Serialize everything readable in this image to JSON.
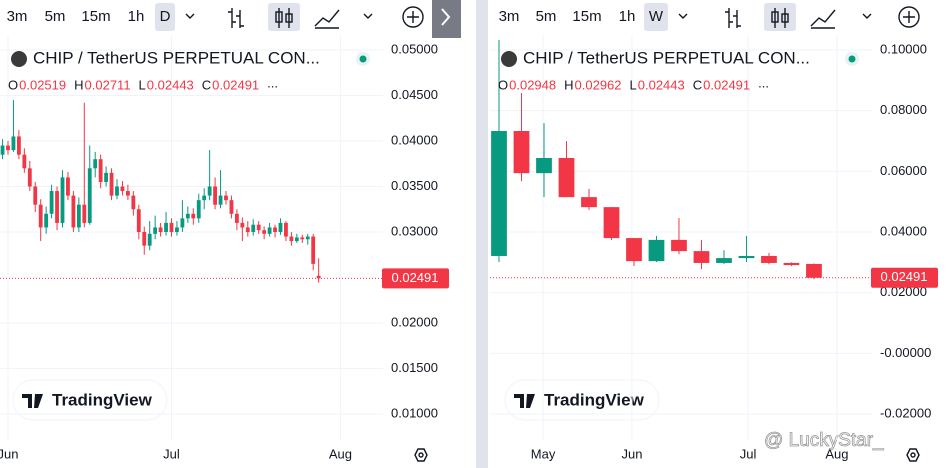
{
  "toolbars": [
    {
      "intervals": [
        "3m",
        "5m",
        "15m",
        "1h",
        "D"
      ]
    },
    {
      "intervals": [
        "3m",
        "5m",
        "15m",
        "1h",
        "W"
      ]
    }
  ],
  "watermark": "TradingView",
  "credit": "@ LuckyStar_",
  "chart_data": [
    {
      "type": "candlestick",
      "symbol": "CHIP / TetherUS PERPETUAL CON...",
      "ohlc_labels": [
        "O",
        "H",
        "L",
        "C"
      ],
      "more": "...",
      "up_color": "#089981",
      "down_color": "#f23645",
      "ylim": [
        0.007143,
        0.051648
      ],
      "yticks": [
        {
          "value": 0.05,
          "label": "0.05000"
        },
        {
          "value": 0.045,
          "label": "0.04500"
        },
        {
          "value": 0.04,
          "label": "0.04000"
        },
        {
          "value": 0.035,
          "label": "0.03500"
        },
        {
          "value": 0.03,
          "label": "0.03000"
        },
        {
          "value": 0.02,
          "label": "0.02000"
        },
        {
          "value": 0.015,
          "label": "0.01500"
        },
        {
          "value": 0.01,
          "label": "0.01000"
        }
      ],
      "xlim": [
        -0.468,
        69.81
      ],
      "xticks": [
        {
          "value": 1,
          "label": "Jun"
        },
        {
          "value": 31,
          "label": "Jul"
        },
        {
          "value": 62,
          "label": "Aug"
        }
      ],
      "ohlc": [
        [
          0.0385,
          0.0402,
          0.038,
          0.0395
        ],
        [
          0.0395,
          0.04,
          0.0385,
          0.039
        ],
        [
          0.039,
          0.0445,
          0.0388,
          0.0405
        ],
        [
          0.0405,
          0.0412,
          0.038,
          0.0385
        ],
        [
          0.0385,
          0.0392,
          0.0365,
          0.037
        ],
        [
          0.037,
          0.0378,
          0.0345,
          0.035
        ],
        [
          0.035,
          0.0355,
          0.0322,
          0.033
        ],
        [
          0.033,
          0.0336,
          0.029,
          0.0305
        ],
        [
          0.0305,
          0.0328,
          0.0298,
          0.032
        ],
        [
          0.032,
          0.0352,
          0.0315,
          0.0345
        ],
        [
          0.0345,
          0.035,
          0.0302,
          0.031
        ],
        [
          0.031,
          0.0368,
          0.0305,
          0.036
        ],
        [
          0.036,
          0.0366,
          0.0335,
          0.034
        ],
        [
          0.034,
          0.0345,
          0.03,
          0.0305
        ],
        [
          0.0305,
          0.0338,
          0.03,
          0.033
        ],
        [
          0.033,
          0.0442,
          0.0305,
          0.031
        ],
        [
          0.031,
          0.0395,
          0.0308,
          0.037
        ],
        [
          0.037,
          0.0388,
          0.036,
          0.038
        ],
        [
          0.038,
          0.0385,
          0.0348,
          0.0355
        ],
        [
          0.0355,
          0.0372,
          0.035,
          0.0365
        ],
        [
          0.0365,
          0.037,
          0.0335,
          0.034
        ],
        [
          0.034,
          0.0358,
          0.0336,
          0.035
        ],
        [
          0.035,
          0.0356,
          0.034,
          0.0345
        ],
        [
          0.0345,
          0.0352,
          0.0335,
          0.034
        ],
        [
          0.034,
          0.0345,
          0.0318,
          0.0325
        ],
        [
          0.0325,
          0.033,
          0.0292,
          0.03
        ],
        [
          0.03,
          0.0306,
          0.0275,
          0.0285
        ],
        [
          0.0285,
          0.0312,
          0.028,
          0.0298
        ],
        [
          0.0298,
          0.0318,
          0.0292,
          0.0305
        ],
        [
          0.0305,
          0.031,
          0.0295,
          0.03
        ],
        [
          0.03,
          0.0322,
          0.0296,
          0.031
        ],
        [
          0.031,
          0.0315,
          0.0295,
          0.03
        ],
        [
          0.03,
          0.0312,
          0.0296,
          0.0305
        ],
        [
          0.0305,
          0.0335,
          0.03,
          0.0315
        ],
        [
          0.0315,
          0.0328,
          0.031,
          0.032
        ],
        [
          0.032,
          0.0326,
          0.0308,
          0.0315
        ],
        [
          0.0315,
          0.0342,
          0.031,
          0.0335
        ],
        [
          0.0335,
          0.0348,
          0.0325,
          0.034
        ],
        [
          0.034,
          0.039,
          0.0335,
          0.035
        ],
        [
          0.035,
          0.036,
          0.0325,
          0.033
        ],
        [
          0.033,
          0.0368,
          0.0326,
          0.034
        ],
        [
          0.034,
          0.0345,
          0.033,
          0.0335
        ],
        [
          0.0335,
          0.034,
          0.0315,
          0.032
        ],
        [
          0.032,
          0.0325,
          0.0302,
          0.031
        ],
        [
          0.031,
          0.0316,
          0.029,
          0.0305
        ],
        [
          0.0305,
          0.0312,
          0.0295,
          0.03
        ],
        [
          0.03,
          0.0314,
          0.0296,
          0.0308
        ],
        [
          0.0308,
          0.0312,
          0.0298,
          0.0302
        ],
        [
          0.0302,
          0.0306,
          0.0292,
          0.0298
        ],
        [
          0.0298,
          0.031,
          0.0295,
          0.0305
        ],
        [
          0.0305,
          0.0308,
          0.0294,
          0.03
        ],
        [
          0.03,
          0.0315,
          0.0297,
          0.031
        ],
        [
          0.031,
          0.0312,
          0.029,
          0.0295
        ],
        [
          0.0295,
          0.03,
          0.0285,
          0.029
        ],
        [
          0.029,
          0.0298,
          0.0288,
          0.0294
        ],
        [
          0.0294,
          0.0297,
          0.0288,
          0.0292
        ],
        [
          0.0292,
          0.0298,
          0.0286,
          0.0295
        ],
        [
          0.0295,
          0.0298,
          0.0258,
          0.0265
        ],
        [
          0.02519,
          0.02711,
          0.02443,
          0.02491
        ]
      ]
    },
    {
      "type": "candlestick",
      "symbol": "CHIP / TetherUS PERPETUAL CON...",
      "ohlc_labels": [
        "O",
        "H",
        "L",
        "C"
      ],
      "more": "...",
      "up_color": "#089981",
      "down_color": "#f23645",
      "ylim": [
        -0.02857,
        0.10495
      ],
      "yticks": [
        {
          "value": 0.1,
          "label": "0.10000"
        },
        {
          "value": 0.08,
          "label": "0.08000"
        },
        {
          "value": 0.06,
          "label": "0.06000"
        },
        {
          "value": 0.04,
          "label": "0.04000"
        },
        {
          "value": 0.02,
          "label": "0.02000"
        },
        {
          "value": 0,
          "label": "-0.00000"
        },
        {
          "value": -0.02,
          "label": "-0.02000"
        }
      ],
      "xlim": [
        -0.4,
        16.58
      ],
      "xticks": [
        {
          "value": 1.96,
          "label": "May"
        },
        {
          "value": 5.91,
          "label": "Jun"
        },
        {
          "value": 11.07,
          "label": "Jul"
        },
        {
          "value": 15.02,
          "label": "Aug"
        }
      ],
      "ohlc": [
        [
          0.0321,
          0.1033,
          0.0301,
          0.0733
        ],
        [
          0.0733,
          0.0858,
          0.0568,
          0.0594
        ],
        [
          0.0594,
          0.0759,
          0.0515,
          0.0644
        ],
        [
          0.0644,
          0.07,
          0.0515,
          0.0515
        ],
        [
          0.0515,
          0.0542,
          0.0473,
          0.0482
        ],
        [
          0.0482,
          0.0482,
          0.0374,
          0.038
        ],
        [
          0.038,
          0.038,
          0.0288,
          0.0304
        ],
        [
          0.0304,
          0.0387,
          0.0301,
          0.0374
        ],
        [
          0.0374,
          0.0446,
          0.0327,
          0.0337
        ],
        [
          0.0337,
          0.0374,
          0.0278,
          0.0298
        ],
        [
          0.0298,
          0.034,
          0.0294,
          0.0314
        ],
        [
          0.0314,
          0.0387,
          0.0301,
          0.0321
        ],
        [
          0.0321,
          0.0331,
          0.0294,
          0.0298
        ],
        [
          0.0298,
          0.03,
          0.0288,
          0.0291
        ],
        [
          0.02948,
          0.02962,
          0.02443,
          0.02491
        ]
      ]
    }
  ]
}
